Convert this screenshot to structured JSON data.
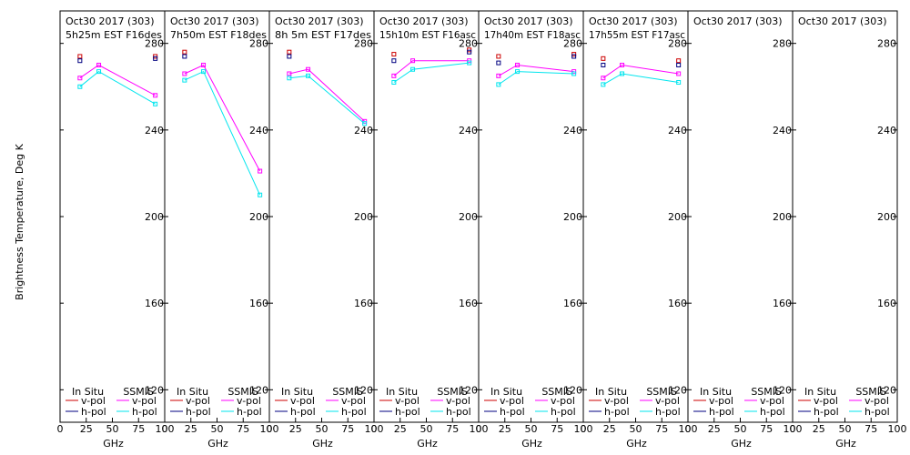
{
  "chart_data": {
    "type": "line",
    "ylabel": "Brightness Temperature, Deg K",
    "xlabel": "GHz",
    "xlim": [
      0,
      100
    ],
    "ylim": [
      105,
      295
    ],
    "x_ticks": [
      "0",
      "25",
      "50",
      "75",
      "100"
    ],
    "y_ticks": [
      120,
      160,
      200,
      240,
      280
    ],
    "legend": {
      "in_situ": "In Situ",
      "ssmis": "SSMIS",
      "vpol": "v-pol",
      "hpol": "h-pol"
    },
    "colors": {
      "insitu_v": "#cc0000",
      "insitu_h": "#000080",
      "ssmis_v": "#ff00ff",
      "ssmis_h": "#00e5ee"
    },
    "panels": [
      {
        "title": "Oct30 2017 (303)",
        "subtitle": "5h25m  EST  F16des",
        "insitu_v": [
          [
            19,
            274
          ],
          [
            91,
            274
          ]
        ],
        "insitu_h": [
          [
            19,
            272
          ],
          [
            91,
            273
          ]
        ],
        "ssmis_v": [
          [
            19,
            264
          ],
          [
            37,
            270
          ],
          [
            91,
            256
          ]
        ],
        "ssmis_h": [
          [
            19,
            260
          ],
          [
            37,
            267
          ],
          [
            91,
            252
          ]
        ]
      },
      {
        "title": "Oct30 2017 (303)",
        "subtitle": "7h50m  EST  F18des",
        "insitu_v": [
          [
            19,
            276
          ]
        ],
        "insitu_h": [
          [
            19,
            274
          ]
        ],
        "ssmis_v": [
          [
            19,
            266
          ],
          [
            37,
            270
          ],
          [
            91,
            221
          ]
        ],
        "ssmis_h": [
          [
            19,
            263
          ],
          [
            37,
            267
          ],
          [
            91,
            210
          ]
        ]
      },
      {
        "title": "Oct30 2017 (303)",
        "subtitle": "8h 5m  EST  F17des",
        "insitu_v": [
          [
            19,
            276
          ]
        ],
        "insitu_h": [
          [
            19,
            274
          ]
        ],
        "ssmis_v": [
          [
            19,
            266
          ],
          [
            37,
            268
          ],
          [
            91,
            244
          ]
        ],
        "ssmis_h": [
          [
            19,
            264
          ],
          [
            37,
            265
          ],
          [
            91,
            243
          ]
        ]
      },
      {
        "title": "Oct30 2017 (303)",
        "subtitle": "15h10m  EST  F16asc",
        "insitu_v": [
          [
            19,
            275
          ],
          [
            91,
            277
          ]
        ],
        "insitu_h": [
          [
            19,
            272
          ],
          [
            91,
            276
          ]
        ],
        "ssmis_v": [
          [
            19,
            265
          ],
          [
            37,
            272
          ],
          [
            91,
            272
          ]
        ],
        "ssmis_h": [
          [
            19,
            262
          ],
          [
            37,
            268
          ],
          [
            91,
            271
          ]
        ]
      },
      {
        "title": "Oct30 2017 (303)",
        "subtitle": "17h40m  EST  F18asc",
        "insitu_v": [
          [
            19,
            274
          ],
          [
            91,
            275
          ]
        ],
        "insitu_h": [
          [
            19,
            271
          ],
          [
            91,
            274
          ]
        ],
        "ssmis_v": [
          [
            19,
            265
          ],
          [
            37,
            270
          ],
          [
            91,
            267
          ]
        ],
        "ssmis_h": [
          [
            19,
            261
          ],
          [
            37,
            267
          ],
          [
            91,
            266
          ]
        ]
      },
      {
        "title": "Oct30 2017 (303)",
        "subtitle": "17h55m  EST  F17asc",
        "insitu_v": [
          [
            19,
            273
          ],
          [
            91,
            272
          ]
        ],
        "insitu_h": [
          [
            19,
            270
          ],
          [
            91,
            270
          ]
        ],
        "ssmis_v": [
          [
            19,
            264
          ],
          [
            37,
            270
          ],
          [
            91,
            266
          ]
        ],
        "ssmis_h": [
          [
            19,
            261
          ],
          [
            37,
            266
          ],
          [
            91,
            262
          ]
        ]
      },
      {
        "title": "Oct30 2017 (303)",
        "subtitle": "",
        "insitu_v": [],
        "insitu_h": [],
        "ssmis_v": [],
        "ssmis_h": []
      },
      {
        "title": "Oct30 2017 (303)",
        "subtitle": "",
        "insitu_v": [],
        "insitu_h": [],
        "ssmis_v": [],
        "ssmis_h": []
      }
    ]
  }
}
